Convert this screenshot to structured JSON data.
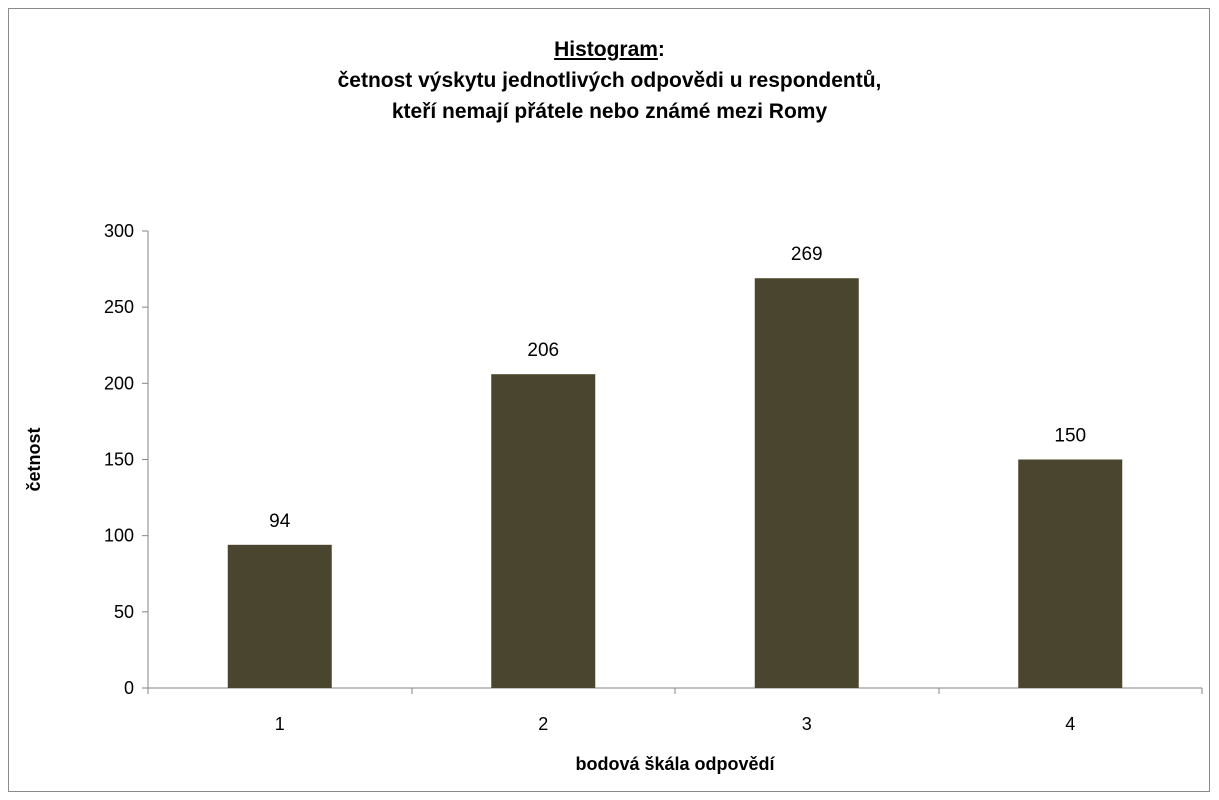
{
  "chart_data": {
    "type": "bar",
    "title": {
      "main": "Histogram",
      "suffix": ":",
      "line2": "četnost výskytu jednotlivých odpovědi u respondentů,",
      "line3": "kteří nemají přátele nebo známé mezi Romy"
    },
    "xlabel": "bodová škála odpovědí",
    "ylabel": "četnost",
    "categories": [
      "1",
      "2",
      "3",
      "4"
    ],
    "values": [
      94,
      206,
      269,
      150
    ],
    "ylim": [
      0,
      300
    ],
    "yticks": [
      0,
      50,
      100,
      150,
      200,
      250,
      300
    ],
    "grid": false,
    "legend": "none",
    "data_labels": true,
    "bar_color": "#4a452e"
  }
}
